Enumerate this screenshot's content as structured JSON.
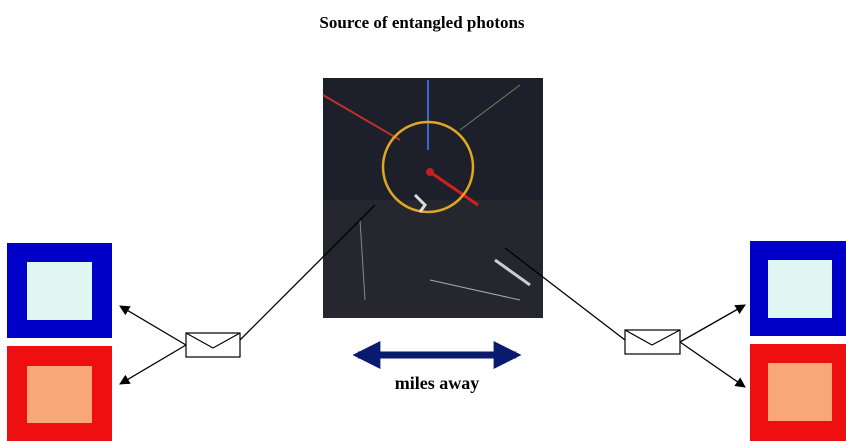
{
  "header": {
    "title": "Source of entangled photons"
  },
  "distance_label": "miles away"
}
